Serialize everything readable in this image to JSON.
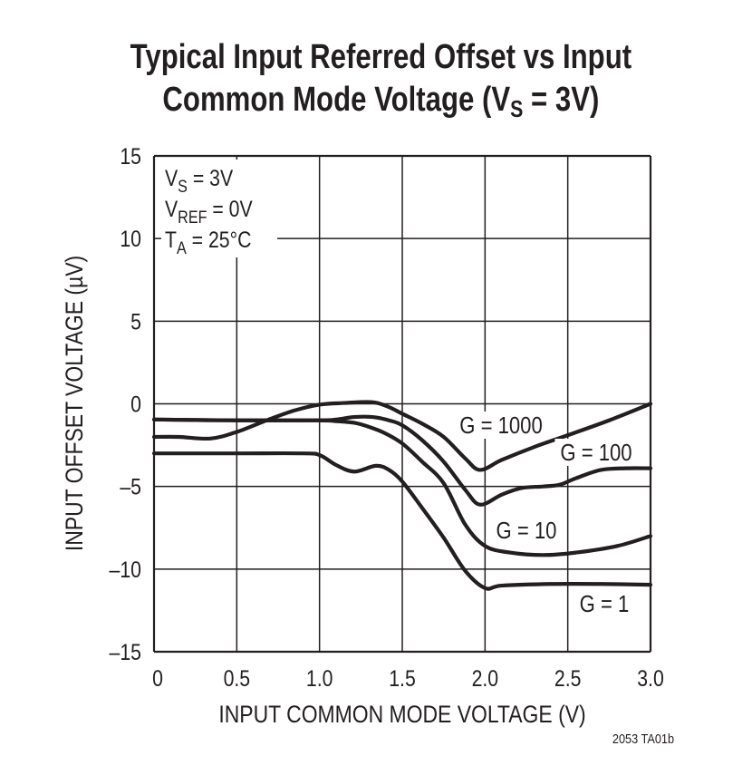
{
  "title": {
    "line1": "Typical Input Referred Offset vs Input",
    "line2_pre": "Common Mode Voltage (V",
    "line2_sub": "S",
    "line2_post": " = 3V)"
  },
  "chart_data": {
    "type": "line",
    "title": "Typical Input Referred Offset vs Input Common Mode Voltage (VS = 3V)",
    "xlabel": "INPUT COMMON MODE VOLTAGE (V)",
    "ylabel": "INPUT OFFSET VOLTAGE (µV)",
    "xlim": [
      0,
      3.0
    ],
    "ylim": [
      -15,
      15
    ],
    "grid": true,
    "xticks": [
      "0",
      "0.5",
      "1.0",
      "1.5",
      "2.0",
      "2.5",
      "3.0"
    ],
    "yticks": [
      "15",
      "10",
      "5",
      "0",
      "–5",
      "–10",
      "–15"
    ],
    "conditions": [
      {
        "main": "V",
        "sub": "S",
        "rest": " = 3V"
      },
      {
        "main": "V",
        "sub": "REF",
        "rest": " = 0V"
      },
      {
        "main": "T",
        "sub": "A",
        "rest": " = 25°C"
      }
    ],
    "series": [
      {
        "name": "G = 1000",
        "x": [
          0,
          0.15,
          0.34,
          0.5,
          0.68,
          0.85,
          1.0,
          1.15,
          1.32,
          1.42,
          1.5,
          1.62,
          1.75,
          1.88,
          1.97,
          2.1,
          2.3,
          2.5,
          2.75,
          3.0
        ],
        "y": [
          -2.0,
          -2.0,
          -2.1,
          -1.7,
          -1.0,
          -0.4,
          -0.05,
          0.05,
          0.1,
          -0.2,
          -0.6,
          -1.2,
          -2.0,
          -3.3,
          -4.0,
          -3.4,
          -2.6,
          -1.9,
          -1.0,
          0.0
        ]
      },
      {
        "name": "G = 100",
        "x": [
          0,
          0.5,
          1.0,
          1.1,
          1.21,
          1.32,
          1.42,
          1.5,
          1.62,
          1.75,
          1.88,
          1.97,
          2.1,
          2.22,
          2.35,
          2.45,
          2.55,
          2.7,
          2.85,
          3.0
        ],
        "y": [
          -0.95,
          -1.0,
          -1.0,
          -0.95,
          -0.8,
          -0.8,
          -1.0,
          -1.3,
          -2.2,
          -3.5,
          -5.2,
          -6.1,
          -5.5,
          -5.1,
          -5.0,
          -4.9,
          -4.5,
          -4.0,
          -3.9,
          -3.9
        ]
      },
      {
        "name": "G = 10",
        "x": [
          0,
          0.5,
          1.0,
          1.1,
          1.21,
          1.3,
          1.4,
          1.5,
          1.62,
          1.75,
          1.88,
          2.0,
          2.15,
          2.35,
          2.55,
          2.8,
          3.0
        ],
        "y": [
          -0.95,
          -1.0,
          -1.0,
          -1.05,
          -1.15,
          -1.4,
          -1.8,
          -2.4,
          -3.5,
          -4.8,
          -7.3,
          -8.6,
          -9.0,
          -9.15,
          -9.0,
          -8.6,
          -8.0
        ]
      },
      {
        "name": "G = 1",
        "x": [
          0,
          0.5,
          0.9,
          1.0,
          1.1,
          1.21,
          1.34,
          1.42,
          1.5,
          1.62,
          1.75,
          1.88,
          2.0,
          2.1,
          2.4,
          2.7,
          3.0
        ],
        "y": [
          -3.0,
          -3.0,
          -3.0,
          -3.1,
          -3.7,
          -4.1,
          -3.75,
          -4.0,
          -4.7,
          -6.3,
          -8.1,
          -10.1,
          -11.15,
          -11.0,
          -10.9,
          -10.9,
          -10.95
        ]
      }
    ],
    "footnote": "2053 TA01b"
  }
}
